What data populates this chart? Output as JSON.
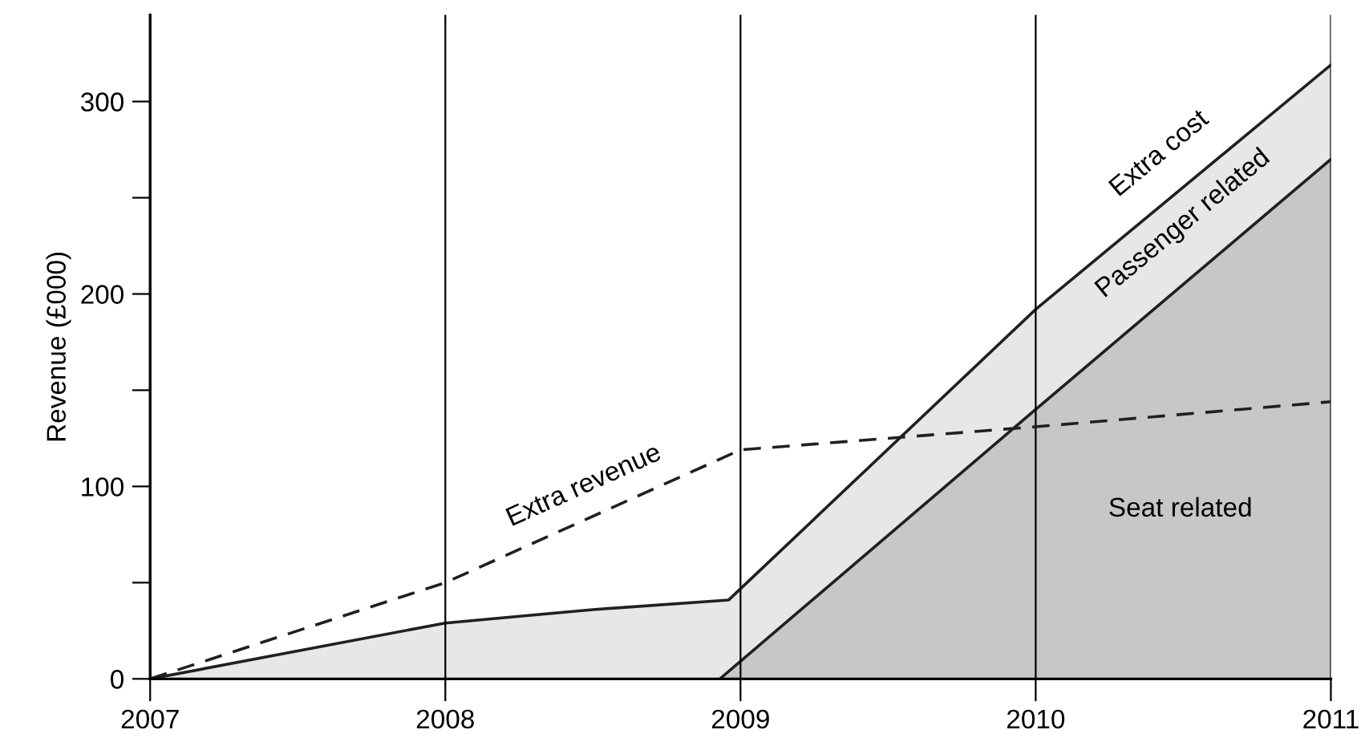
{
  "chart_data": {
    "type": "area",
    "ylabel": "Revenue (£000)",
    "xlim": [
      2007,
      2011
    ],
    "xticks": [
      2007,
      2008,
      2009,
      2010,
      2011
    ],
    "ylim": [
      0,
      345
    ],
    "yticks": [
      0,
      {
        "value": 50,
        "label": null
      },
      100,
      {
        "value": 150,
        "label": null
      },
      200,
      {
        "value": 250,
        "label": null
      },
      300
    ],
    "grid": "x",
    "series": [
      {
        "color": "#e6e7e9",
        "x": [
          2007,
          2008,
          2008.5,
          2008.96,
          2010,
          2011
        ],
        "values": [
          0,
          29,
          36,
          41,
          192,
          319
        ]
      },
      {
        "color": "#c6c7c9",
        "x": [
          2008.93,
          2010,
          2011
        ],
        "values": [
          0,
          140,
          270
        ]
      },
      {
        "type": "line",
        "color": "#231f20",
        "line_style": "dashed",
        "x": [
          2007,
          2008,
          2009,
          2010,
          2011
        ],
        "values": [
          0,
          50,
          119,
          131,
          144
        ]
      }
    ],
    "annotations": [
      "Extra revenue",
      "Extra cost",
      "Passenger related",
      "Seat related"
    ]
  }
}
